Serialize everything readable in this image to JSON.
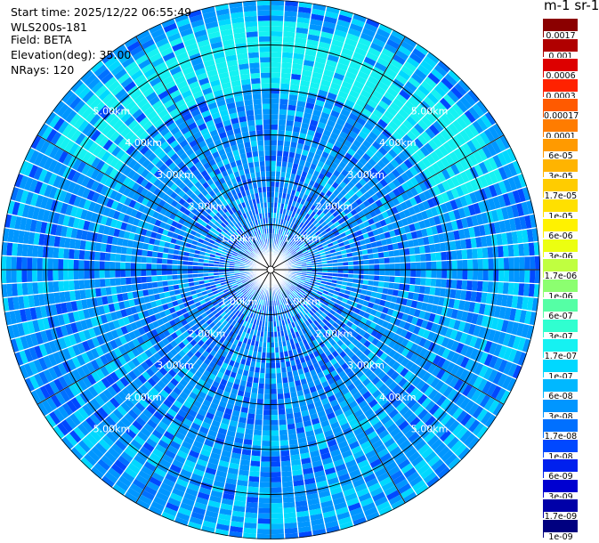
{
  "header": {
    "start_time": "Start time: 2025/12/22 06:55:49",
    "instrument": "WLS200s-181",
    "field": "Field: BETA",
    "elevation": "Elevation(deg): 35.00",
    "nrays": "NRays: 120"
  },
  "colorbar": {
    "title": "m-1 sr-1",
    "labels": [
      "0.0017",
      "0.001",
      "0.0006",
      "0.0003",
      "0.00017",
      "0.0001",
      "6e-05",
      "3e-05",
      "1.7e-05",
      "1e-05",
      "6e-06",
      "3e-06",
      "1.7e-06",
      "1e-06",
      "6e-07",
      "3e-07",
      "1.7e-07",
      "1e-07",
      "6e-08",
      "3e-08",
      "1.7e-08",
      "1e-08",
      "6e-09",
      "3e-09",
      "1.7e-09",
      "1e-09"
    ],
    "colors": [
      "#8b0000",
      "#b00000",
      "#dd0000",
      "#ff2200",
      "#ff5a00",
      "#ff7c00",
      "#ff9a00",
      "#ffb400",
      "#ffcc00",
      "#ffe000",
      "#fff200",
      "#ecff10",
      "#c0ff40",
      "#8cff70",
      "#55ffa5",
      "#30ffd0",
      "#15f2f2",
      "#00d8ff",
      "#00b8ff",
      "#0096ff",
      "#0070ff",
      "#0048ff",
      "#0020ee",
      "#0000d0",
      "#0000a8",
      "#000080"
    ]
  },
  "chart_data": {
    "type": "heatmap",
    "projection": "polar-ppi",
    "field": "BETA",
    "units": "m-1 sr-1",
    "elevation_deg": 35.0,
    "n_rays": 120,
    "range_rings_km": [
      1,
      2,
      3,
      4,
      5
    ],
    "ring_labels": [
      "1.00km",
      "2.00km",
      "3.00km",
      "4.00km",
      "5.00km"
    ],
    "max_range_km": 6.0,
    "color_scale": "log",
    "value_range": [
      1e-09,
      0.0017
    ],
    "dominant_range": [
      1e-08,
      1.7e-07
    ],
    "enhanced_band": {
      "range_km": [
        4.0,
        5.5
      ],
      "azimuth_deg": [
        300,
        70
      ],
      "value": 1.7e-07
    }
  }
}
